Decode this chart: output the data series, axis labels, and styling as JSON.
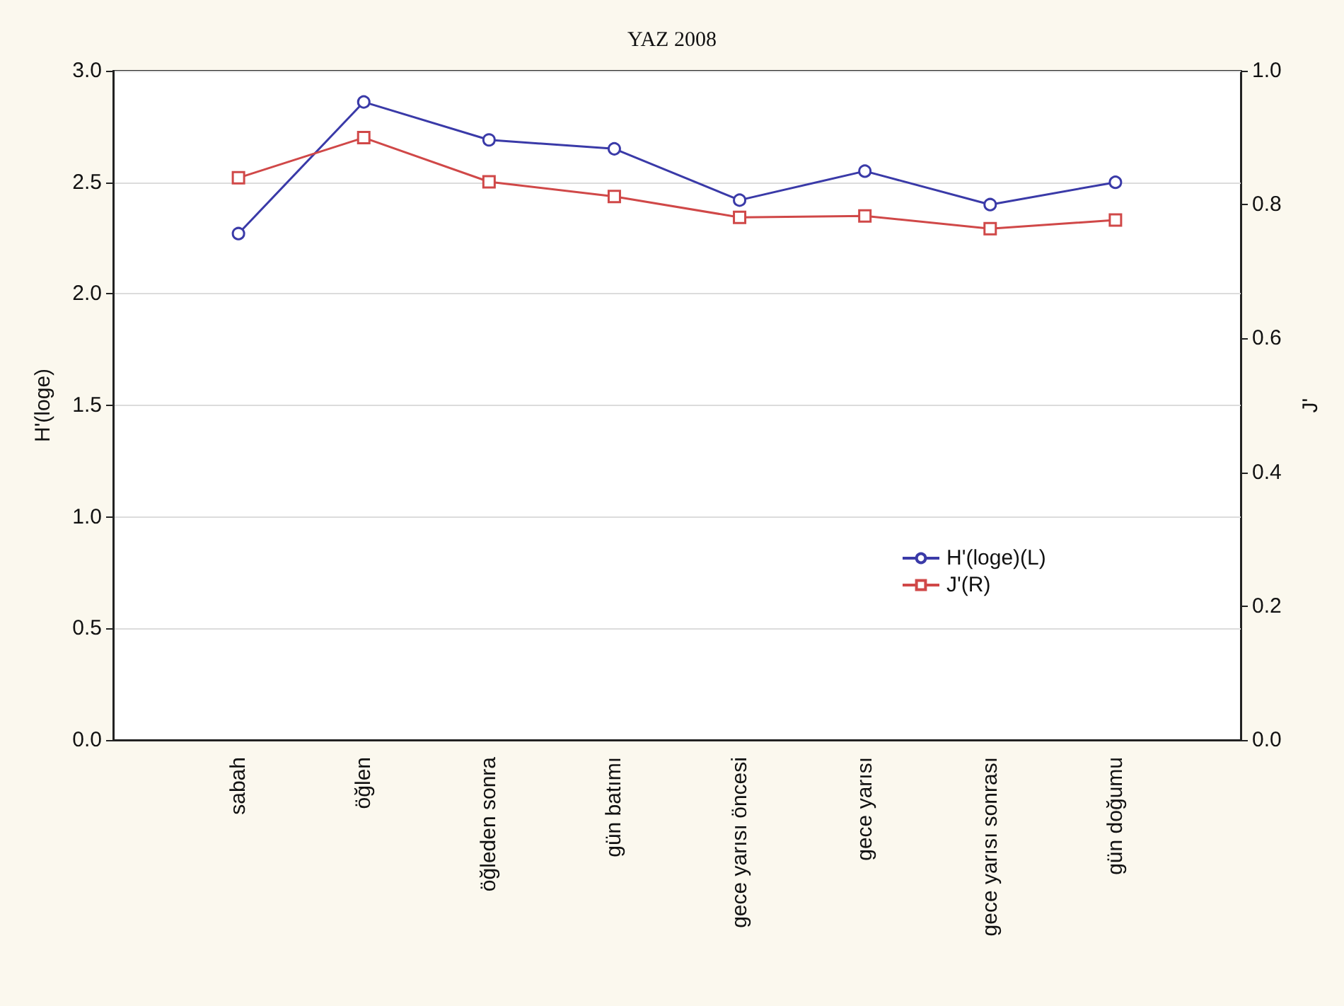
{
  "chart_data": {
    "type": "line",
    "title": "YAZ 2008",
    "ylabel": "H'(loge)",
    "y2label": "J'",
    "categories": [
      "sabah",
      "öğlen",
      "öğleden sonra",
      "gün batımı",
      "gece yarısı öncesi",
      "gece yarısı",
      "gece yarısı sonrası",
      "gün doğumu"
    ],
    "series": [
      {
        "name": "H'(loge)(L)",
        "color": "#3a3aa8",
        "marker": "circle",
        "values": [
          2.27,
          2.86,
          2.69,
          2.65,
          2.42,
          2.55,
          2.4,
          2.5
        ]
      },
      {
        "name": "J'(R)",
        "color": "#d04848",
        "marker": "square",
        "axis": "y2",
        "values": [
          0.84,
          0.9,
          0.834,
          0.812,
          0.781,
          0.783,
          0.764,
          0.777
        ]
      }
    ],
    "ylim": [
      0,
      3
    ],
    "yticks": [
      {
        "value": 0,
        "label": "0.0"
      },
      {
        "value": 0.5,
        "label": "0.5"
      },
      {
        "value": 1,
        "label": "1.0"
      },
      {
        "value": 1.5,
        "label": "1.5"
      },
      {
        "value": 2,
        "label": "2.0"
      },
      {
        "value": 2.5,
        "label": "2.5"
      },
      {
        "value": 3,
        "label": "3.0"
      }
    ],
    "y2lim": [
      0,
      1
    ],
    "y2ticks": [
      {
        "value": 0,
        "label": "0.0"
      },
      {
        "value": 0.2,
        "label": "0.2"
      },
      {
        "value": 0.4,
        "label": "0.4"
      },
      {
        "value": 0.6,
        "label": "0.6"
      },
      {
        "value": 0.8,
        "label": "0.8"
      },
      {
        "value": 1,
        "label": "1.0"
      }
    ],
    "grid": true,
    "legend": "right",
    "line_style": "solid"
  }
}
